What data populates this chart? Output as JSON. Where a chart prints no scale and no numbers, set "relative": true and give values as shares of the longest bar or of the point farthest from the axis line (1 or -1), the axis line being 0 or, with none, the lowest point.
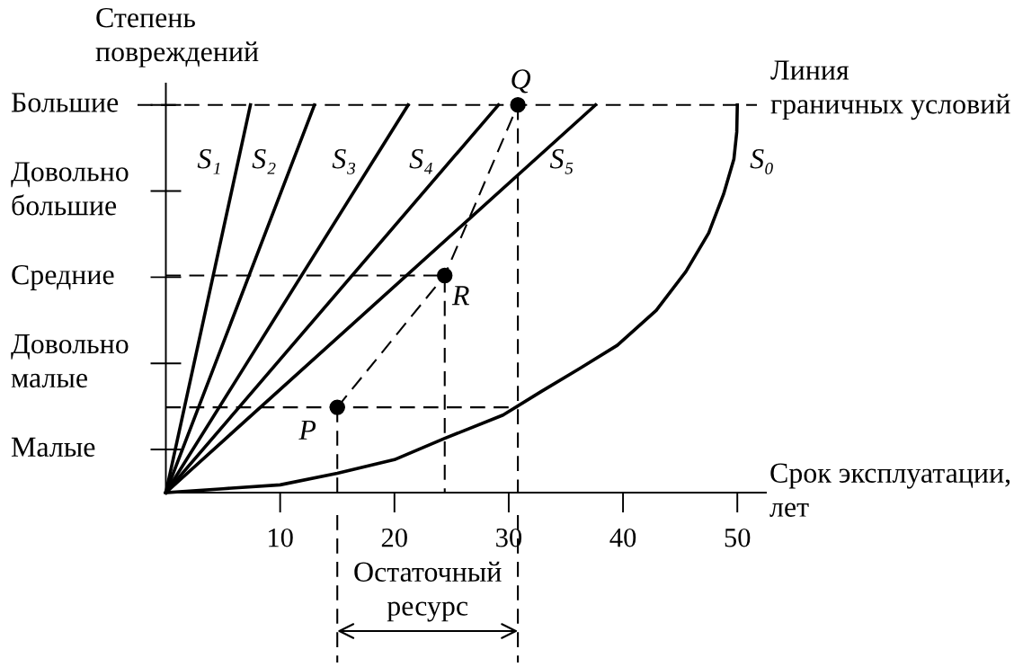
{
  "chart_data": {
    "type": "line",
    "relative": true,
    "xlabel": "Срок эксплуатации,\nлет",
    "ylabel": "Степень\nповреждений",
    "xlim": [
      0,
      52.5
    ],
    "xticks": [
      10,
      20,
      30,
      40,
      50
    ],
    "series": [
      {
        "name": "S₁",
        "color": "#000000",
        "x": [
          0,
          7.4
        ],
        "values": [
          0,
          1
        ]
      },
      {
        "name": "S₂",
        "color": "#000000",
        "x": [
          0,
          13.0
        ],
        "values": [
          0,
          1
        ]
      },
      {
        "name": "S₃",
        "color": "#000000",
        "x": [
          0,
          21.2
        ],
        "values": [
          0,
          1
        ]
      },
      {
        "name": "S₄",
        "color": "#000000",
        "x": [
          0,
          29.1
        ],
        "values": [
          0,
          1
        ]
      },
      {
        "name": "S₅",
        "color": "#000000",
        "x": [
          0,
          37.6
        ],
        "values": [
          0,
          1
        ]
      },
      {
        "name": "S₀",
        "color": "#000000",
        "x": [
          0,
          5,
          10,
          15,
          20,
          24.4,
          29.5,
          32.8,
          36.2,
          39.5,
          42.9,
          45.5,
          47.5,
          48.8,
          49.7,
          49.95,
          50
        ],
        "values": [
          0,
          0.01,
          0.02,
          0.05,
          0.085,
          0.14,
          0.2,
          0.26,
          0.32,
          0.38,
          0.47,
          0.57,
          0.67,
          0.77,
          0.86,
          0.93,
          1
        ]
      },
      {
        "color": "#000000",
        "line_style": "dashed",
        "x": [
          15,
          24.4,
          30.8
        ],
        "values": [
          0.22,
          0.56,
          1
        ]
      },
      {
        "color": "#000000",
        "line_style": "dashed",
        "x": [
          0,
          24.4,
          24.4
        ],
        "values": [
          0.56,
          0.56,
          0
        ]
      },
      {
        "color": "#000000",
        "line_style": "dashed",
        "x": [
          0,
          30.8
        ],
        "values": [
          0.22,
          0.22
        ]
      },
      {
        "color": "#000000",
        "line_style": "dashed",
        "x": [
          15,
          15
        ],
        "values": [
          0.22,
          0
        ]
      },
      {
        "color": "#000000",
        "line_style": "dashed",
        "x": [
          30.8,
          30.8
        ],
        "values": [
          1,
          0
        ]
      },
      {
        "type": "scatter",
        "color": "#000000",
        "marker": "circle",
        "x": [
          15,
          24.4,
          30.8
        ],
        "values": [
          0.22,
          0.56,
          1
        ]
      }
    ],
    "ref_lines": [
      {
        "axis": "y",
        "value": 1,
        "label": "Линия\nграничных условий",
        "line_style": "dashed",
        "color": "#000000"
      }
    ],
    "annotations": [
      "Большие",
      "Довольно\nбольшие",
      "Средние",
      "Довольно\nмалые",
      "Малые",
      {
        "text": "P",
        "x": 15,
        "y": 0.22
      },
      {
        "text": "R",
        "x": 24.4,
        "y": 0.56
      },
      {
        "text": "Q",
        "x": 30.8,
        "y": 1
      },
      "Остаточный\nресурс"
    ]
  }
}
